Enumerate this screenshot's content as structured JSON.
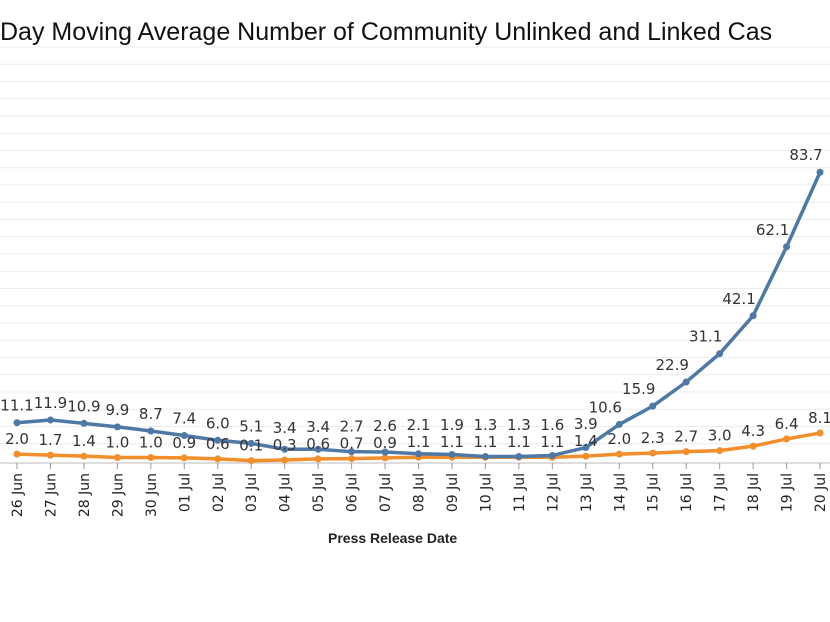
{
  "chart_data": {
    "type": "line",
    "title": "Day Moving Average Number of Community Unlinked and Linked Cas",
    "xlabel": "Press Release Date",
    "ylabel": "",
    "ylim": [
      0,
      120
    ],
    "grid": "horizontal",
    "categories": [
      "26 Jun",
      "27 Jun",
      "28 Jun",
      "29 Jun",
      "30 Jun",
      "01 Jul",
      "02 Jul",
      "03 Jul",
      "04 Jul",
      "05 Jul",
      "06 Jul",
      "07 Jul",
      "08 Jul",
      "09 Jul",
      "10 Jul",
      "11 Jul",
      "12 Jul",
      "13 Jul",
      "14 Jul",
      "15 Jul",
      "16 Jul",
      "17 Jul",
      "18 Jul",
      "19 Jul",
      "20 Jul"
    ],
    "series": [
      {
        "color": "#4e79a7",
        "values": [
          11.1,
          11.9,
          10.9,
          9.9,
          8.7,
          7.4,
          6.0,
          5.1,
          3.4,
          3.4,
          2.7,
          2.6,
          2.1,
          1.9,
          1.3,
          1.3,
          1.6,
          3.9,
          10.6,
          15.9,
          22.9,
          31.1,
          42.1,
          62.1,
          83.7
        ]
      },
      {
        "color": "#f28e2b",
        "values": [
          2.0,
          1.7,
          1.4,
          1.0,
          1.0,
          0.9,
          0.6,
          0.1,
          0.3,
          0.6,
          0.7,
          0.9,
          1.1,
          1.1,
          1.1,
          1.1,
          1.1,
          1.4,
          2.0,
          2.3,
          2.7,
          3.0,
          4.3,
          6.4,
          8.1
        ]
      }
    ]
  }
}
